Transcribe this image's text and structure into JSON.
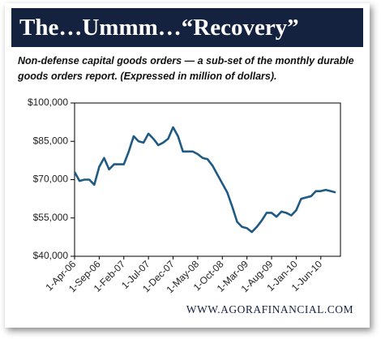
{
  "chart_data": {
    "type": "line",
    "title": "The…Ummm…“Recovery”",
    "subtitle": "Non-defense capital goods orders — a sub-set of the monthly durable goods orders report. (Expressed in million of dollars).",
    "source": "WWW.AGORAFINANCIAL.COM",
    "categories": [
      "1-Apr-06",
      null,
      null,
      null,
      null,
      "1-Sep-06",
      null,
      null,
      null,
      null,
      "1-Feb-07",
      null,
      null,
      null,
      null,
      "1-Jul-07",
      null,
      null,
      null,
      null,
      "1-Dec-07",
      null,
      null,
      null,
      null,
      "1-May-08",
      null,
      null,
      null,
      null,
      "1-Oct-08",
      null,
      null,
      null,
      null,
      "1-Mar-09",
      null,
      null,
      null,
      null,
      "1-Aug-09",
      null,
      null,
      null,
      null,
      "1-Jan-10",
      null,
      null,
      null,
      null,
      "1-Jun-10",
      null,
      null,
      null
    ],
    "series": [
      {
        "name": "Non-defense capital goods orders",
        "color": "#1f5a85",
        "values": [
          73000,
          69500,
          70000,
          70000,
          68000,
          75000,
          78500,
          74000,
          76000,
          76000,
          76000,
          81000,
          87000,
          85000,
          84500,
          88000,
          86000,
          83500,
          84500,
          86000,
          90500,
          87000,
          81000,
          81000,
          81000,
          80000,
          78500,
          78000,
          75500,
          72000,
          68500,
          65000,
          59500,
          53500,
          51500,
          51000,
          49500,
          51500,
          54000,
          57000,
          57000,
          55500,
          57500,
          57000,
          56000,
          58000,
          62500,
          63000,
          63500,
          65500,
          65500,
          66000,
          65500,
          65000
        ]
      }
    ],
    "ylim": [
      40000,
      100000
    ],
    "yticks": [
      {
        "value": 40000,
        "label": "$40,000"
      },
      {
        "value": 55000,
        "label": "$55,000"
      },
      {
        "value": 70000,
        "label": "$70,000"
      },
      {
        "value": 85000,
        "label": "$85,000"
      },
      {
        "value": 100000,
        "label": "$100,000"
      }
    ]
  }
}
